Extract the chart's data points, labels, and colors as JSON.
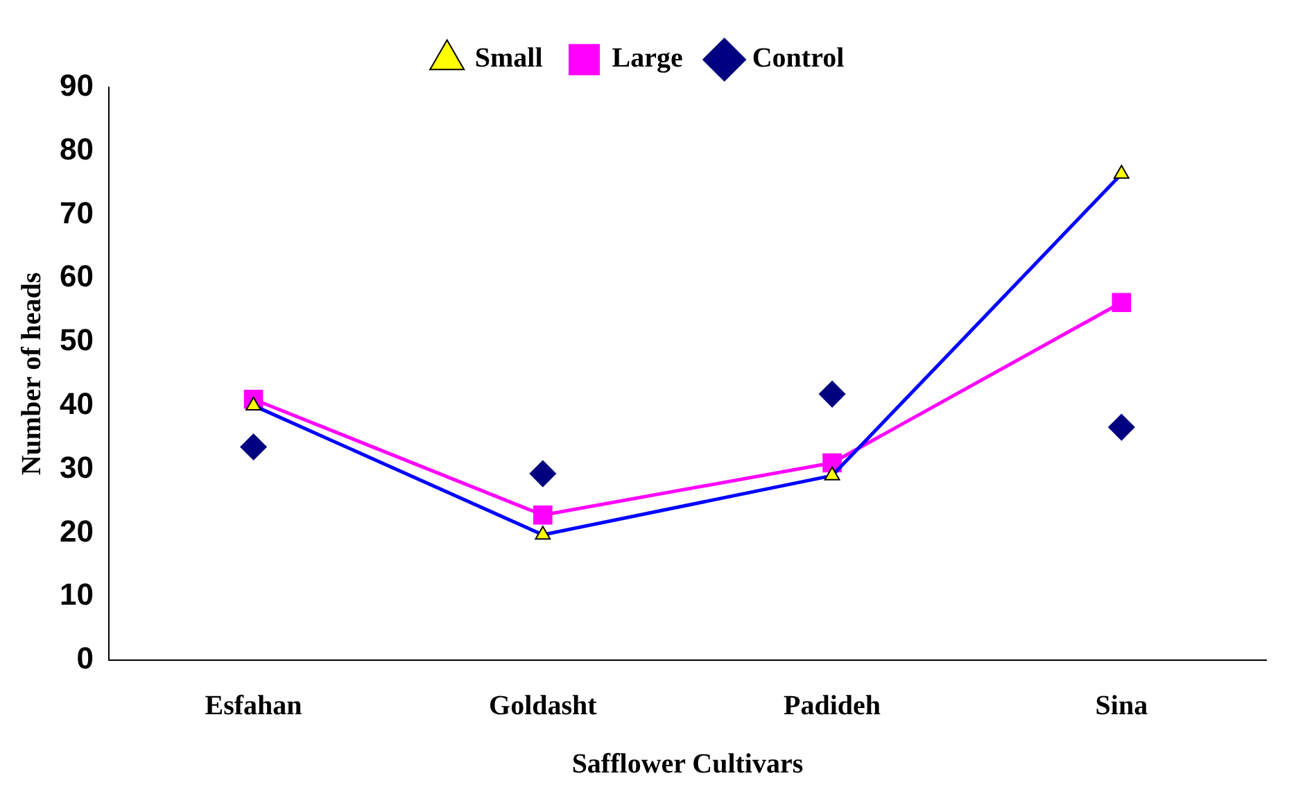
{
  "chart_data": {
    "type": "line",
    "xlabel": "Safflower Cultivars",
    "ylabel": "Number of heads",
    "categories": [
      "Esfahan",
      "Goldasht",
      "Padideh",
      "Sina"
    ],
    "series": [
      {
        "name": "Control",
        "type": "scatter",
        "color": "#000080",
        "marker": "diamond",
        "values": [
          33.5,
          29.3,
          41.8,
          36.6
        ]
      },
      {
        "name": "Large",
        "type": "line",
        "color": "#ff00ff",
        "marker": "square",
        "values": [
          41,
          22.8,
          31,
          56.2
        ]
      },
      {
        "name": "Small",
        "type": "line",
        "color": "#0000ff",
        "marker": "triangle",
        "values": [
          40,
          19.7,
          29,
          76.4
        ]
      }
    ],
    "ylim": [
      0,
      90
    ],
    "yticks": [
      0,
      10,
      20,
      30,
      40,
      50,
      60,
      70,
      80,
      90
    ],
    "grid": false,
    "legend": "top"
  }
}
